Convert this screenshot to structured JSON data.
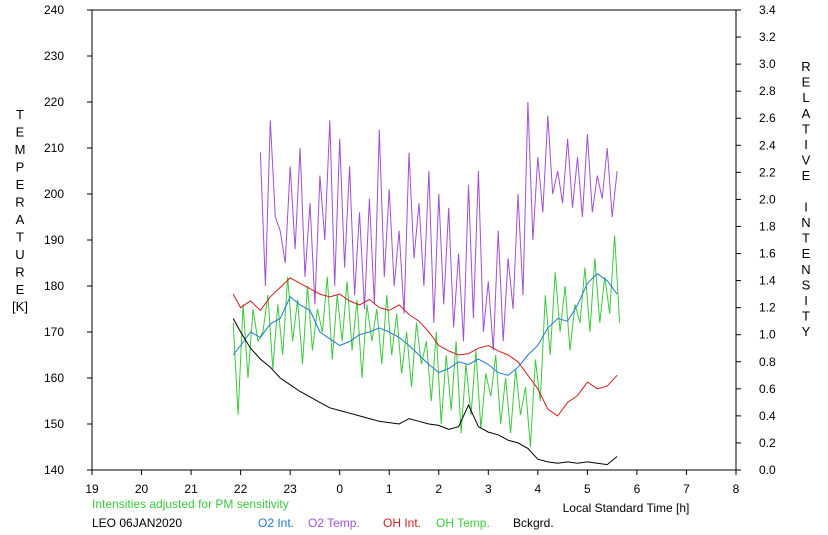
{
  "chart_data": {
    "type": "line",
    "left_axis": {
      "label_letters": [
        "T",
        "E",
        "M",
        "P",
        "E",
        "R",
        "A",
        "T",
        "U",
        "R",
        "E"
      ],
      "unit": "[K]",
      "ylim": [
        140,
        240
      ],
      "ticks": [
        "140",
        "150",
        "160",
        "170",
        "180",
        "190",
        "200",
        "210",
        "220",
        "230",
        "240"
      ]
    },
    "right_axis": {
      "label_letters": [
        "R",
        "E",
        "L",
        "A",
        "T",
        "I",
        "V",
        "E",
        "",
        "I",
        "N",
        "T",
        "E",
        "N",
        "S",
        "I",
        "T",
        "Y"
      ],
      "ylim": [
        0.0,
        3.4
      ],
      "ticks": [
        "0.0",
        "0.2",
        "0.4",
        "0.6",
        "0.8",
        "1.0",
        "1.2",
        "1.4",
        "1.6",
        "1.8",
        "2.0",
        "2.2",
        "2.4",
        "2.6",
        "2.8",
        "3.0",
        "3.2",
        "3.4"
      ]
    },
    "x_axis": {
      "xlim": [
        19,
        32
      ],
      "tick_values": [
        19,
        20,
        21,
        22,
        23,
        24,
        25,
        26,
        27,
        28,
        29,
        30,
        31,
        32
      ],
      "ticks": [
        "19",
        "20",
        "21",
        "22",
        "23",
        "0",
        "1",
        "2",
        "3",
        "4",
        "5",
        "6",
        "7",
        "8"
      ],
      "label": "Local Standard Time [h]"
    },
    "note": "Intensities adjusted for PM sensitivity",
    "station": "LEO 06JAN2020",
    "series": [
      {
        "name": "O2 Int.",
        "axis": "right",
        "color": "#1e78d2",
        "x": [
          21.85,
          22.0,
          22.2,
          22.4,
          22.6,
          22.8,
          23.0,
          23.2,
          23.4,
          23.6,
          23.8,
          24.0,
          24.2,
          24.4,
          24.6,
          24.8,
          25.0,
          25.2,
          25.4,
          25.6,
          25.8,
          26.0,
          26.2,
          26.4,
          26.6,
          26.8,
          27.0,
          27.2,
          27.4,
          27.6,
          27.8,
          28.0,
          28.2,
          28.4,
          28.6,
          28.8,
          29.0,
          29.2,
          29.4,
          29.6
        ],
        "values": [
          0.85,
          0.92,
          1.02,
          0.98,
          1.08,
          1.12,
          1.28,
          1.22,
          1.18,
          1.02,
          0.97,
          0.92,
          0.95,
          1.0,
          1.02,
          1.05,
          1.02,
          0.98,
          0.92,
          0.85,
          0.78,
          0.72,
          0.75,
          0.8,
          0.78,
          0.82,
          0.78,
          0.72,
          0.7,
          0.76,
          0.85,
          0.92,
          1.05,
          1.12,
          1.1,
          1.22,
          1.38,
          1.45,
          1.4,
          1.3
        ]
      },
      {
        "name": "O2 Temp.",
        "axis": "left",
        "color": "#a050d2",
        "x": [
          22.4,
          22.5,
          22.6,
          22.7,
          22.8,
          22.9,
          23.0,
          23.1,
          23.2,
          23.3,
          23.4,
          23.5,
          23.6,
          23.7,
          23.8,
          23.9,
          24.0,
          24.1,
          24.2,
          24.3,
          24.4,
          24.5,
          24.6,
          24.7,
          24.8,
          24.9,
          25.0,
          25.1,
          25.2,
          25.3,
          25.4,
          25.5,
          25.6,
          25.7,
          25.8,
          25.9,
          26.0,
          26.1,
          26.2,
          26.3,
          26.4,
          26.5,
          26.6,
          26.7,
          26.8,
          26.9,
          27.0,
          27.1,
          27.2,
          27.3,
          27.4,
          27.5,
          27.6,
          27.7,
          27.8,
          27.9,
          28.0,
          28.1,
          28.2,
          28.3,
          28.4,
          28.5,
          28.6,
          28.7,
          28.8,
          28.9,
          29.0,
          29.1,
          29.2,
          29.3,
          29.4,
          29.5,
          29.6
        ],
        "values": [
          209,
          180,
          216,
          195,
          192,
          185,
          206,
          188,
          210,
          182,
          198,
          176,
          204,
          190,
          216,
          180,
          212,
          184,
          206,
          178,
          196,
          175,
          199,
          176,
          214,
          182,
          201,
          180,
          192,
          174,
          209,
          186,
          198,
          180,
          205,
          172,
          200,
          176,
          197,
          171,
          187,
          168,
          202,
          173,
          205,
          170,
          181,
          166,
          192,
          168,
          186,
          175,
          200,
          178,
          220,
          190,
          208,
          196,
          217,
          200,
          205,
          198,
          212,
          197,
          208,
          195,
          213,
          196,
          204,
          199,
          210,
          195,
          205
        ]
      },
      {
        "name": "OH Int.",
        "axis": "right",
        "color": "#d21e1e",
        "x": [
          21.85,
          22.0,
          22.2,
          22.4,
          22.6,
          22.8,
          23.0,
          23.2,
          23.4,
          23.6,
          23.8,
          24.0,
          24.2,
          24.4,
          24.6,
          24.8,
          25.0,
          25.2,
          25.4,
          25.6,
          25.8,
          26.0,
          26.2,
          26.4,
          26.6,
          26.8,
          27.0,
          27.2,
          27.4,
          27.6,
          27.8,
          28.0,
          28.2,
          28.4,
          28.6,
          28.8,
          29.0,
          29.2,
          29.4,
          29.6
        ],
        "values": [
          1.3,
          1.2,
          1.25,
          1.18,
          1.28,
          1.35,
          1.42,
          1.38,
          1.34,
          1.3,
          1.28,
          1.3,
          1.25,
          1.22,
          1.26,
          1.2,
          1.18,
          1.22,
          1.15,
          1.1,
          1.02,
          0.92,
          0.88,
          0.85,
          0.86,
          0.9,
          0.92,
          0.88,
          0.85,
          0.8,
          0.7,
          0.6,
          0.45,
          0.4,
          0.5,
          0.55,
          0.65,
          0.6,
          0.62,
          0.7
        ]
      },
      {
        "name": "OH Temp.",
        "axis": "left",
        "color": "#3cc83c",
        "x": [
          21.85,
          21.95,
          22.05,
          22.15,
          22.25,
          22.35,
          22.45,
          22.55,
          22.65,
          22.75,
          22.85,
          22.95,
          23.05,
          23.15,
          23.25,
          23.35,
          23.45,
          23.55,
          23.65,
          23.75,
          23.85,
          23.95,
          24.05,
          24.15,
          24.25,
          24.35,
          24.45,
          24.55,
          24.65,
          24.75,
          24.85,
          24.95,
          25.05,
          25.15,
          25.25,
          25.35,
          25.45,
          25.55,
          25.65,
          25.75,
          25.85,
          25.95,
          26.05,
          26.15,
          26.25,
          26.35,
          26.45,
          26.55,
          26.65,
          26.75,
          26.85,
          26.95,
          27.05,
          27.15,
          27.25,
          27.35,
          27.45,
          27.55,
          27.65,
          27.75,
          27.85,
          27.95,
          28.05,
          28.15,
          28.25,
          28.35,
          28.45,
          28.55,
          28.65,
          28.75,
          28.85,
          28.95,
          29.05,
          29.15,
          29.25,
          29.35,
          29.45,
          29.55,
          29.65
        ],
        "values": [
          172,
          152,
          176,
          160,
          175,
          168,
          170,
          178,
          162,
          176,
          165,
          182,
          168,
          177,
          163,
          180,
          166,
          175,
          170,
          182,
          164,
          178,
          168,
          181,
          166,
          177,
          160,
          176,
          168,
          175,
          163,
          178,
          165,
          174,
          161,
          170,
          158,
          172,
          163,
          168,
          155,
          170,
          150,
          165,
          153,
          168,
          148,
          163,
          152,
          166,
          149,
          161,
          156,
          165,
          150,
          160,
          148,
          162,
          152,
          158,
          145,
          164,
          155,
          178,
          165,
          183,
          170,
          180,
          166,
          176,
          172,
          184,
          170,
          186,
          172,
          182,
          174,
          191,
          172
        ]
      },
      {
        "name": "Bckgrd.",
        "axis": "right",
        "color": "#000000",
        "x": [
          21.85,
          22.0,
          22.2,
          22.4,
          22.6,
          22.8,
          23.0,
          23.2,
          23.4,
          23.6,
          23.8,
          24.0,
          24.2,
          24.4,
          24.6,
          24.8,
          25.0,
          25.2,
          25.4,
          25.6,
          25.8,
          26.0,
          26.2,
          26.4,
          26.6,
          26.8,
          27.0,
          27.2,
          27.4,
          27.6,
          27.8,
          28.0,
          28.2,
          28.4,
          28.6,
          28.8,
          29.0,
          29.2,
          29.4,
          29.6
        ],
        "values": [
          1.12,
          1.02,
          0.9,
          0.82,
          0.76,
          0.68,
          0.63,
          0.58,
          0.54,
          0.5,
          0.46,
          0.44,
          0.42,
          0.4,
          0.38,
          0.36,
          0.35,
          0.34,
          0.38,
          0.36,
          0.34,
          0.33,
          0.3,
          0.32,
          0.48,
          0.32,
          0.28,
          0.26,
          0.22,
          0.2,
          0.16,
          0.08,
          0.06,
          0.05,
          0.06,
          0.05,
          0.06,
          0.05,
          0.04,
          0.1
        ]
      }
    ]
  }
}
